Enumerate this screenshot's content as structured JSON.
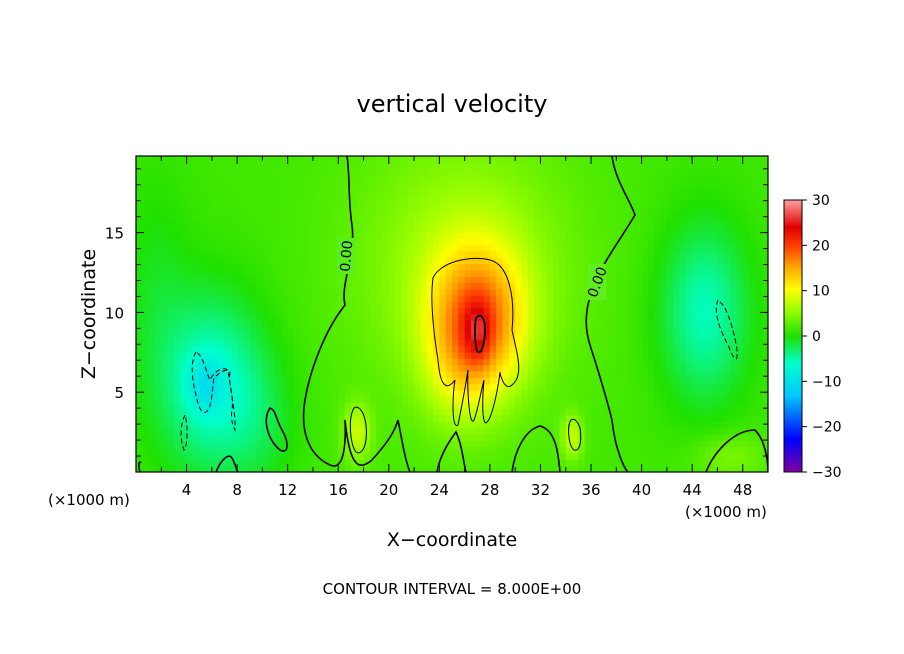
{
  "chart_data": {
    "type": "heatmap",
    "title": "vertical velocity",
    "xlabel": "X−coordinate",
    "ylabel": "Z−coordinate",
    "x_unit_left": "(×1000 m)",
    "x_unit_right": "(×1000 m)",
    "footer": "CONTOUR INTERVAL = 8.000E+00",
    "xlim": [
      0,
      50
    ],
    "ylim": [
      0,
      19.8
    ],
    "xticks": [
      4,
      8,
      12,
      16,
      20,
      24,
      28,
      32,
      36,
      40,
      44,
      48
    ],
    "yticks": [
      5,
      10,
      15
    ],
    "colorbar": {
      "range": [
        -30,
        30
      ],
      "ticks": [
        30,
        20,
        10,
        0,
        -10,
        -20,
        -30
      ],
      "tick_labels": [
        "30",
        "20",
        "10",
        "0",
        "−10",
        "−20",
        "−30"
      ],
      "colors": [
        "#8000a0",
        "#0000ff",
        "#00c8ff",
        "#00ffcc",
        "#20e000",
        "#a0ff00",
        "#ffff00",
        "#ffaa00",
        "#ff4000",
        "#e00000",
        "#ffa0a0"
      ]
    },
    "contour_labels": [
      "0.00",
      "0.00"
    ],
    "features": [
      {
        "kind": "updraft",
        "x": 27,
        "z": 9.5,
        "sx": 2.6,
        "sz": 3.2,
        "w": 14
      },
      {
        "kind": "updraft",
        "x": 27,
        "z": 8.8,
        "sx": 0.8,
        "sz": 1.4,
        "w": 6
      },
      {
        "kind": "updraft",
        "x": 26,
        "z": 13,
        "sx": 6,
        "sz": 6,
        "w": 5
      },
      {
        "kind": "updraft",
        "x": 25.5,
        "z": 6,
        "sx": 2,
        "sz": 2.5,
        "w": 3
      },
      {
        "kind": "updraft",
        "x": 17.5,
        "z": 2.5,
        "sx": 0.8,
        "sz": 1.3,
        "w": 6
      },
      {
        "kind": "updraft",
        "x": 34.5,
        "z": 2.2,
        "sx": 0.6,
        "sz": 1,
        "w": 6
      },
      {
        "kind": "updraft",
        "x": 47,
        "z": 1,
        "sx": 2,
        "sz": 1,
        "w": 3
      },
      {
        "kind": "downdraft",
        "x": 6,
        "z": 5.5,
        "sx": 3,
        "sz": 4,
        "w": -8
      },
      {
        "kind": "downdraft",
        "x": 5.5,
        "z": 5.5,
        "sx": 1,
        "sz": 1.2,
        "w": -4
      },
      {
        "kind": "downdraft",
        "x": 45,
        "z": 10,
        "sx": 2.5,
        "sz": 4,
        "w": -7
      },
      {
        "kind": "downdraft",
        "x": 1.5,
        "z": 12,
        "sx": 2,
        "sz": 5,
        "w": -2
      },
      {
        "kind": "downdraft",
        "x": 10,
        "z": 3,
        "sx": 2,
        "sz": 3,
        "w": -2
      }
    ],
    "legend": "none",
    "grid": false
  }
}
